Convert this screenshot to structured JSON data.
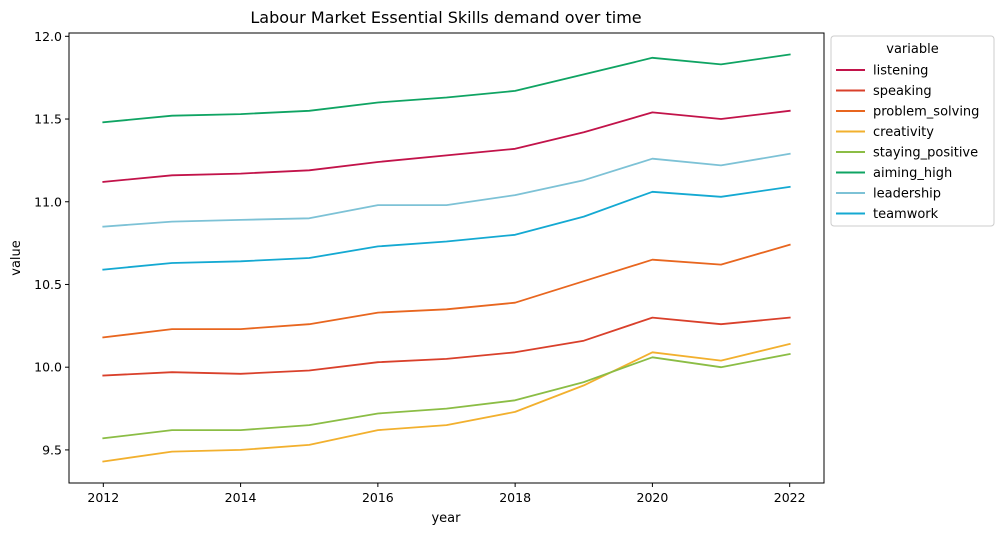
{
  "chart_data": {
    "type": "line",
    "title": "Labour Market Essential Skills demand over time",
    "xlabel": "year",
    "ylabel": "value",
    "xlim": [
      2011.5,
      2022.5
    ],
    "ylim": [
      9.3,
      12.02
    ],
    "xticks": [
      2012,
      2014,
      2016,
      2018,
      2020,
      2022
    ],
    "yticks": [
      9.5,
      10.0,
      10.5,
      11.0,
      11.5,
      12.0
    ],
    "ytick_labels": [
      "9.5",
      "10.0",
      "10.5",
      "11.0",
      "11.5",
      "12.0"
    ],
    "grid": false,
    "legend": {
      "title": "variable",
      "placement": "outside-right-top"
    },
    "x": [
      2012,
      2013,
      2014,
      2015,
      2016,
      2017,
      2018,
      2019,
      2020,
      2021,
      2022
    ],
    "series": [
      {
        "name": "listening",
        "color": "#c2134a",
        "values": [
          11.12,
          11.16,
          11.17,
          11.19,
          11.24,
          11.28,
          11.32,
          11.42,
          11.54,
          11.5,
          11.55
        ]
      },
      {
        "name": "speaking",
        "color": "#d9402b",
        "values": [
          9.95,
          9.97,
          9.96,
          9.98,
          10.03,
          10.05,
          10.09,
          10.16,
          10.3,
          10.26,
          10.3
        ]
      },
      {
        "name": "problem_solving",
        "color": "#e8661f",
        "values": [
          10.18,
          10.23,
          10.23,
          10.26,
          10.33,
          10.35,
          10.39,
          10.52,
          10.65,
          10.62,
          10.74
        ]
      },
      {
        "name": "creativity",
        "color": "#f2b02e",
        "values": [
          9.43,
          9.49,
          9.5,
          9.53,
          9.62,
          9.65,
          9.73,
          9.89,
          10.09,
          10.04,
          10.14
        ]
      },
      {
        "name": "staying_positive",
        "color": "#8bbd45",
        "values": [
          9.57,
          9.62,
          9.62,
          9.65,
          9.72,
          9.75,
          9.8,
          9.91,
          10.06,
          10.0,
          10.08
        ]
      },
      {
        "name": "aiming_high",
        "color": "#0fa463",
        "values": [
          11.48,
          11.52,
          11.53,
          11.55,
          11.6,
          11.63,
          11.67,
          11.77,
          11.87,
          11.83,
          11.89
        ]
      },
      {
        "name": "leadership",
        "color": "#7dc2d6",
        "values": [
          10.85,
          10.88,
          10.89,
          10.9,
          10.98,
          10.98,
          11.04,
          11.13,
          11.26,
          11.22,
          11.29
        ]
      },
      {
        "name": "teamwork",
        "color": "#14a9d2",
        "values": [
          10.59,
          10.63,
          10.64,
          10.66,
          10.73,
          10.76,
          10.8,
          10.91,
          11.06,
          11.03,
          11.09
        ]
      }
    ]
  }
}
